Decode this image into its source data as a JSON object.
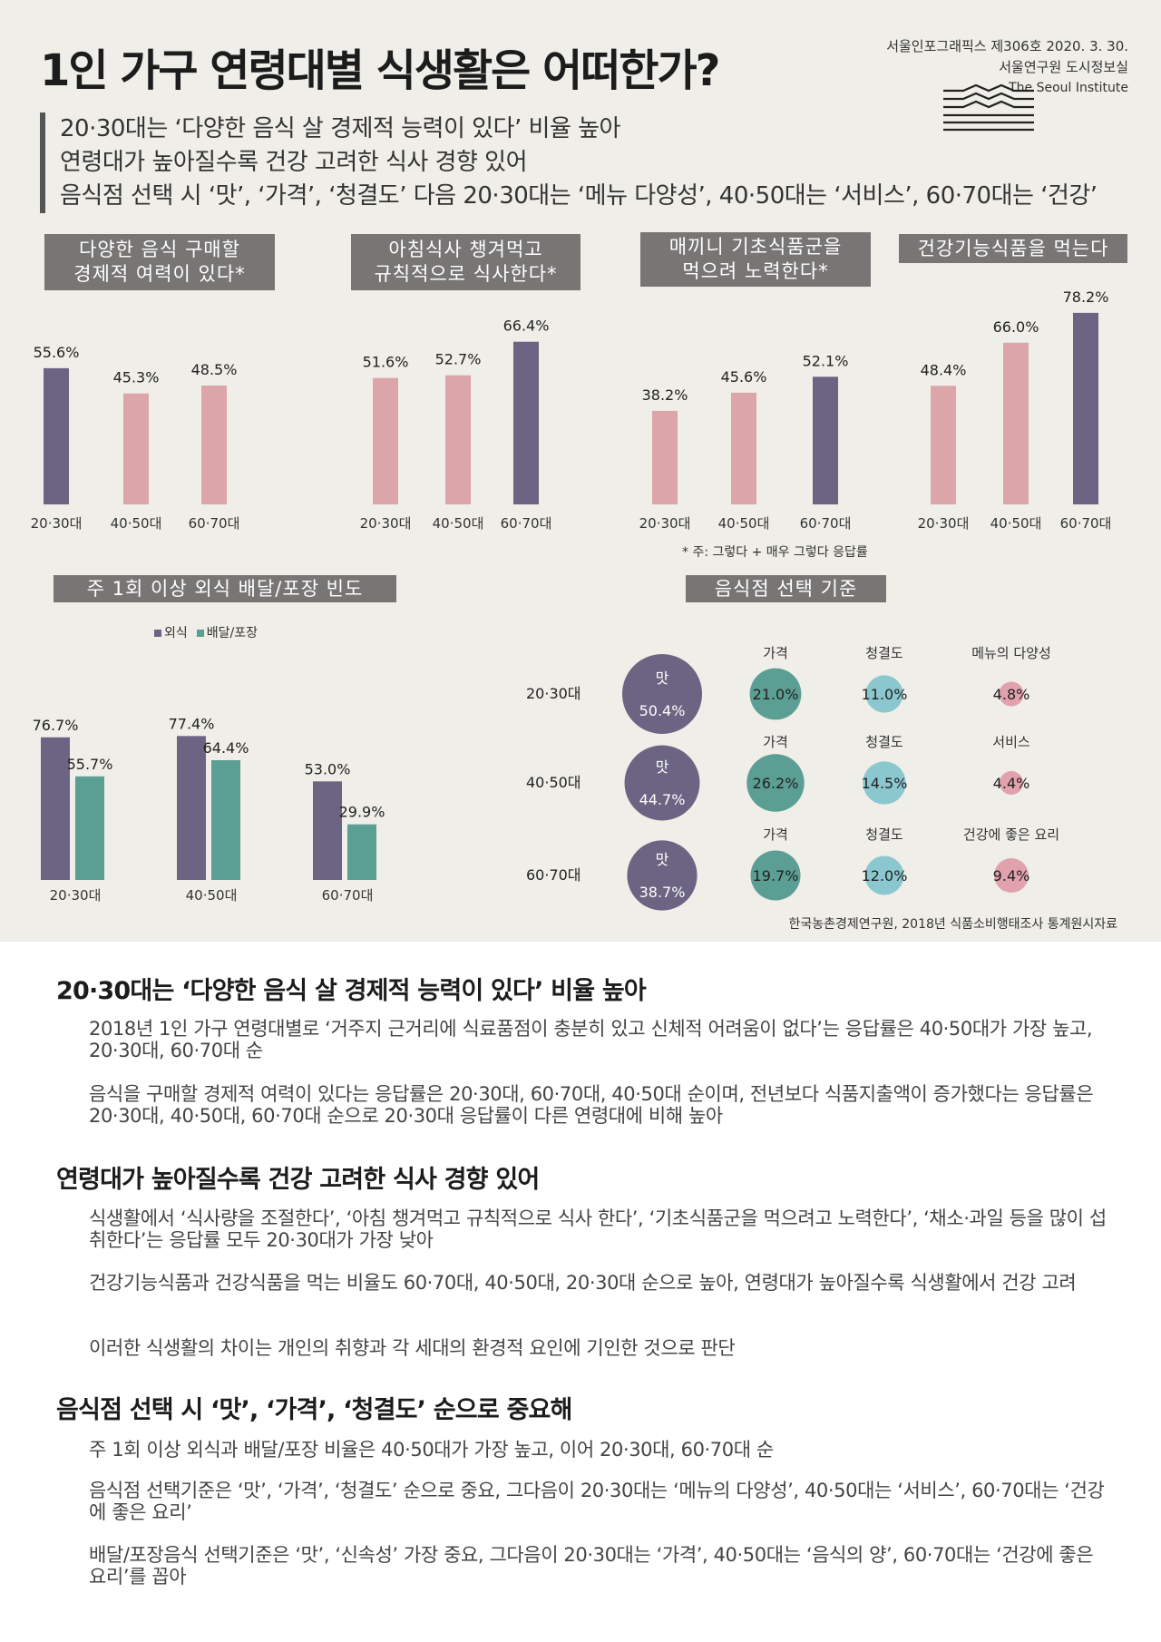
{
  "header": {
    "title": "1인 가구 연령대별 식생활은 어떠한가?",
    "issue": "서울인포그래픽스 제306호 2020. 3. 30.",
    "dept": "서울연구원 도시정보실",
    "institute": "The Seoul Institute"
  },
  "summary": [
    "20·30대는 ‘다양한 음식 살 경제적 능력이 있다’ 비율 높아",
    "연령대가 높아질수록 건강 고려한 식사 경향 있어",
    "음식점 선택 시 ‘맛’, ‘가격’, ‘청결도’ 다음 20·30대는 ‘메뉴 다양성’, 40·50대는 ‘서비스’, 60·70대는 ‘건강’"
  ],
  "colors": {
    "dark": "#6b6482",
    "pink": "#dba5a9",
    "teal": "#5b9e93",
    "light_teal": "#8bc7cf",
    "rose": "#e2a2ad",
    "box": "#787575"
  },
  "chart_data": [
    {
      "type": "bar",
      "title_line1": "다양한 음식 구매할",
      "title_line2": "경제적 여력이 있다*",
      "categories": [
        "20·30대",
        "40·50대",
        "60·70대"
      ],
      "values": [
        55.6,
        45.3,
        48.5
      ],
      "labels": [
        "55.6%",
        "45.3%",
        "48.5%"
      ],
      "highlight_index": 0,
      "ylim": [
        0,
        90
      ]
    },
    {
      "type": "bar",
      "title_line1": "아침식사 챙겨먹고",
      "title_line2": "규칙적으로 식사한다*",
      "categories": [
        "20·30대",
        "40·50대",
        "60·70대"
      ],
      "values": [
        51.6,
        52.7,
        66.4
      ],
      "labels": [
        "51.6%",
        "52.7%",
        "66.4%"
      ],
      "highlight_index": 2,
      "ylim": [
        0,
        90
      ]
    },
    {
      "type": "bar",
      "title_line1": "매끼니 기초식품군을",
      "title_line2": "먹으려 노력한다*",
      "categories": [
        "20·30대",
        "40·50대",
        "60·70대"
      ],
      "values": [
        38.2,
        45.6,
        52.1
      ],
      "labels": [
        "38.2%",
        "45.6%",
        "52.1%"
      ],
      "highlight_index": 2,
      "ylim": [
        0,
        90
      ]
    },
    {
      "type": "bar",
      "title_line1": "건강기능식품을 먹는다",
      "title_line2": "",
      "categories": [
        "20·30대",
        "40·50대",
        "60·70대"
      ],
      "values": [
        48.4,
        66.0,
        78.2
      ],
      "labels": [
        "48.4%",
        "66.0%",
        "78.2%"
      ],
      "highlight_index": 2,
      "ylim": [
        0,
        90
      ]
    },
    {
      "type": "bar",
      "title": "주 1회 이상 외식 배달/포장 빈도",
      "categories": [
        "20·30대",
        "40·50대",
        "60·70대"
      ],
      "series": [
        {
          "name": "외식",
          "values": [
            76.7,
            77.4,
            53.0
          ],
          "labels": [
            "76.7%",
            "77.4%",
            "53.0%"
          ]
        },
        {
          "name": "배달/포장",
          "values": [
            55.7,
            64.4,
            29.9
          ],
          "labels": [
            "55.7%",
            "64.4%",
            "29.9%"
          ]
        }
      ],
      "ylim": [
        0,
        85
      ]
    },
    {
      "type": "bubble",
      "title": "음식점 선택 기준",
      "rows": [
        {
          "age": "20·30대",
          "items": [
            {
              "name": "맛",
              "value": 50.4,
              "label": "50.4%"
            },
            {
              "name": "가격",
              "value": 21.0,
              "label": "21.0%"
            },
            {
              "name": "청결도",
              "value": 11.0,
              "label": "11.0%"
            },
            {
              "name": "메뉴의 다양성",
              "value": 4.8,
              "label": "4.8%"
            }
          ]
        },
        {
          "age": "40·50대",
          "items": [
            {
              "name": "맛",
              "value": 44.7,
              "label": "44.7%"
            },
            {
              "name": "가격",
              "value": 26.2,
              "label": "26.2%"
            },
            {
              "name": "청결도",
              "value": 14.5,
              "label": "14.5%"
            },
            {
              "name": "서비스",
              "value": 4.4,
              "label": "4.4%"
            }
          ]
        },
        {
          "age": "60·70대",
          "items": [
            {
              "name": "맛",
              "value": 38.7,
              "label": "38.7%"
            },
            {
              "name": "가격",
              "value": 19.7,
              "label": "19.7%"
            },
            {
              "name": "청결도",
              "value": 12.0,
              "label": "12.0%"
            },
            {
              "name": "건강에 좋은 요리",
              "value": 9.4,
              "label": "9.4%"
            }
          ]
        }
      ]
    }
  ],
  "note": "* 주: 그렇다 + 매우 그렇다 응답률",
  "source": "한국농촌경제연구원, 2018년 식품소비행태조사 통계원시자료",
  "sections": [
    {
      "heading": "20·30대는 ‘다양한 음식 살 경제적 능력이 있다’ 비율 높아",
      "paragraphs": [
        "2018년 1인 가구 연령대별로 ‘거주지 근거리에 식료품점이 충분히 있고 신체적 어려움이 없다’는 응답률은 40·50대가 가장 높고, 20·30대, 60·70대 순",
        "음식을 구매할 경제적 여력이 있다는 응답률은 20·30대, 60·70대, 40·50대 순이며, 전년보다 식품지출액이 증가했다는 응답률은 20·30대, 40·50대, 60·70대 순으로 20·30대 응답률이 다른 연령대에 비해 높아"
      ]
    },
    {
      "heading": "연령대가 높아질수록 건강 고려한 식사 경향 있어",
      "paragraphs": [
        "식생활에서 ‘식사량을 조절한다’, ‘아침 챙겨먹고 규칙적으로 식사 한다’, ‘기초식품군을 먹으려고 노력한다’, ‘채소·과일 등을 많이 섭취한다’는 응답률 모두 20·30대가 가장 낮아",
        "건강기능식품과 건강식품을 먹는 비율도 60·70대, 40·50대, 20·30대 순으로 높아, 연령대가 높아질수록 식생활에서 건강 고려",
        "이러한 식생활의 차이는 개인의 취향과 각 세대의 환경적 요인에 기인한 것으로 판단"
      ]
    },
    {
      "heading": "음식점 선택 시 ‘맛’, ‘가격’, ‘청결도’ 순으로 중요해",
      "paragraphs": [
        "주 1회 이상 외식과 배달/포장 비율은 40·50대가 가장 높고, 이어 20·30대, 60·70대 순",
        "음식점 선택기준은 ‘맛’, ‘가격’, ‘청결도’ 순으로 중요, 그다음이 20·30대는 ‘메뉴의 다양성’, 40·50대는 ‘서비스’, 60·70대는 ‘건강에 좋은 요리’",
        "배달/포장음식 선택기준은 ‘맛’, ‘신속성’ 가장 중요, 그다음이 20·30대는 ‘가격’, 40·50대는 ‘음식의 양’, 60·70대는 ‘건강에 좋은 요리’를 꼽아"
      ]
    }
  ]
}
